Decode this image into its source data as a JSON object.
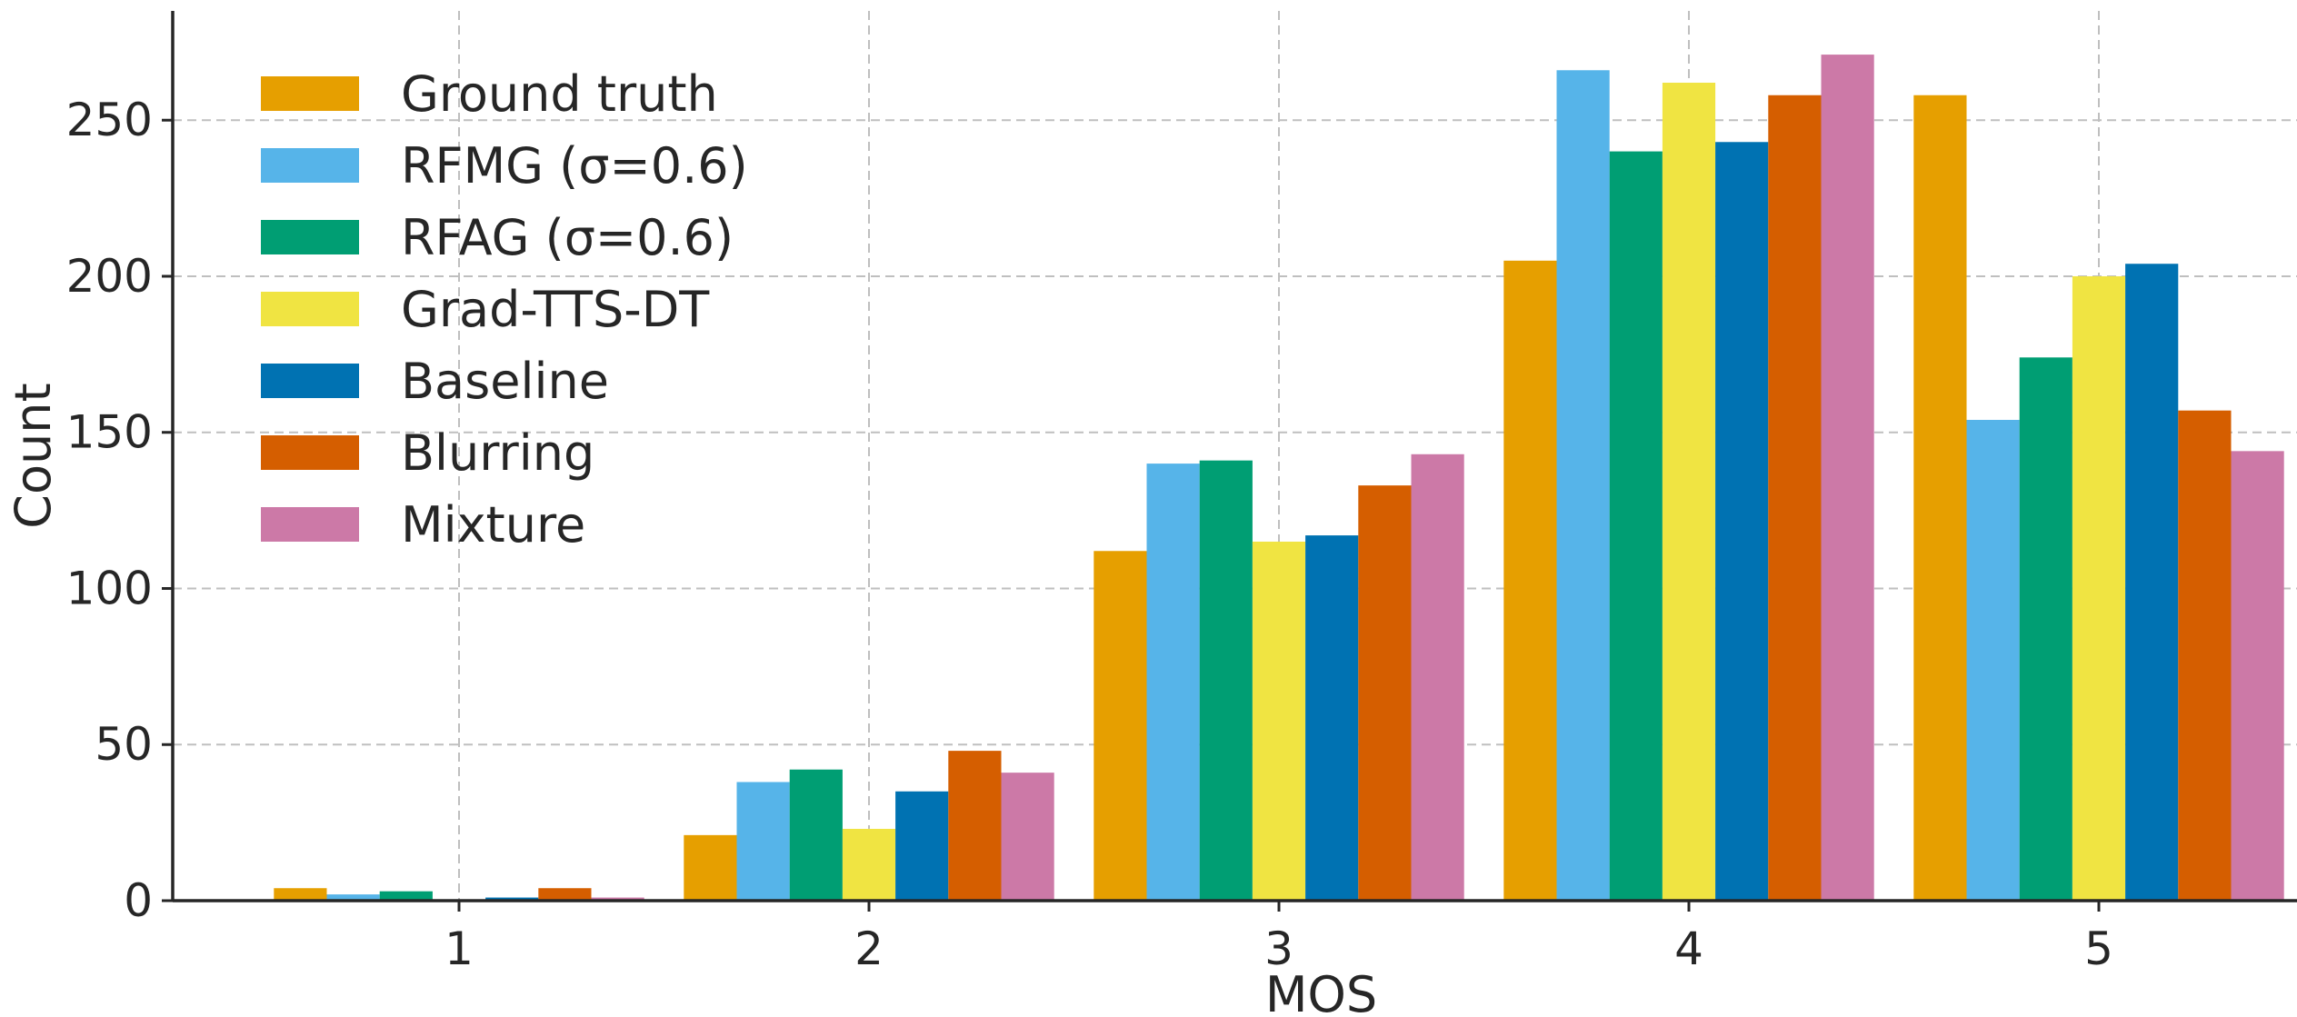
{
  "chart_data": {
    "type": "bar",
    "title": "",
    "xlabel": "MOS",
    "ylabel": "Count",
    "categories": [
      "1",
      "2",
      "3",
      "4",
      "5"
    ],
    "ylim": [
      0,
      285
    ],
    "yticks": [
      0,
      50,
      100,
      150,
      200,
      250
    ],
    "grid": true,
    "legend_position": "top-left",
    "series": [
      {
        "name": "Ground truth",
        "color": "#E69F00",
        "values": [
          4,
          21,
          112,
          205,
          258
        ]
      },
      {
        "name": "RFMG (σ=0.6)",
        "color": "#56B4E9",
        "values": [
          2,
          38,
          140,
          266,
          154
        ]
      },
      {
        "name": "RFAG (σ=0.6)",
        "color": "#009E73",
        "values": [
          3,
          42,
          141,
          240,
          174
        ]
      },
      {
        "name": "Grad-TTS-DT",
        "color": "#F0E442",
        "values": [
          0,
          23,
          115,
          262,
          200
        ]
      },
      {
        "name": "Baseline",
        "color": "#0072B2",
        "values": [
          1,
          35,
          117,
          243,
          204
        ]
      },
      {
        "name": "Blurring",
        "color": "#D55E00",
        "values": [
          4,
          48,
          133,
          258,
          157
        ]
      },
      {
        "name": "Mixture",
        "color": "#CC79A7",
        "values": [
          1,
          41,
          143,
          271,
          144
        ]
      }
    ]
  }
}
